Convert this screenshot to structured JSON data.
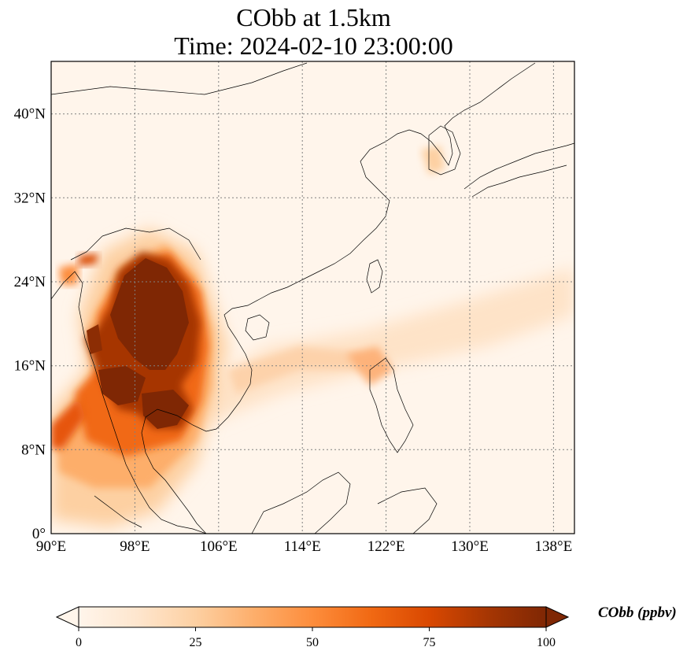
{
  "title": {
    "line1": "CObb at 1.5km",
    "line2": "Time: 2024-02-10 23:00:00"
  },
  "map": {
    "extent": {
      "lon": [
        90,
        140
      ],
      "lat": [
        0,
        45
      ]
    },
    "lon_ticks": [
      "90°E",
      "98°E",
      "106°E",
      "114°E",
      "122°E",
      "130°E",
      "138°E"
    ],
    "lat_ticks": [
      "0°",
      "8°N",
      "16°N",
      "24°N",
      "32°N",
      "40°N"
    ],
    "gridlines": true
  },
  "colorbar": {
    "label": "CObb (ppbv)",
    "ticks": [
      "0",
      "25",
      "50",
      "75",
      "100"
    ],
    "range": [
      0,
      100
    ],
    "colormap": [
      "#fff5eb",
      "#fee6ce",
      "#fdd0a2",
      "#fdae6b",
      "#fd8d3c",
      "#f16913",
      "#d94801",
      "#a63603",
      "#7f2704"
    ],
    "extend": "both"
  }
}
